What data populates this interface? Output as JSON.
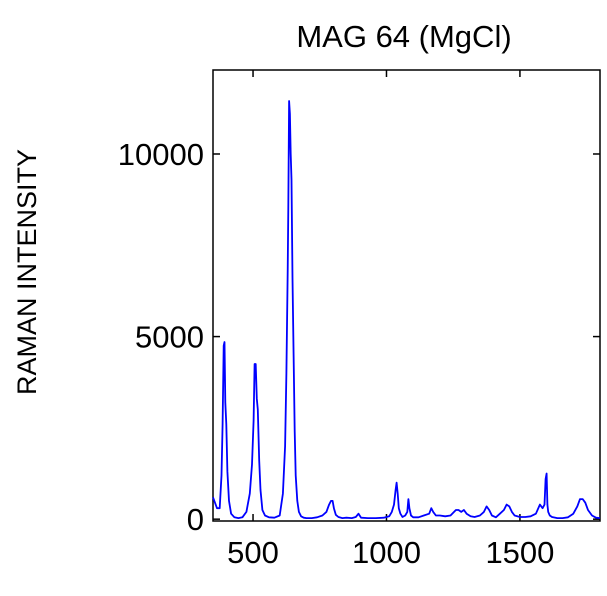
{
  "chart_data": {
    "type": "line",
    "title": "MAG 64 (MgCl)",
    "xlabel": "",
    "ylabel": "RAMAN INTENSITY",
    "xlim": [
      350,
      1800
    ],
    "ylim": [
      -50,
      12300
    ],
    "xticks": [
      500,
      1000,
      1500
    ],
    "yticks": [
      0,
      5000,
      10000
    ],
    "grid": false,
    "line_color": "#0000ff",
    "series": [
      {
        "x": [
          350,
          365,
          375,
          382,
          386,
          390,
          393,
          396,
          400,
          404,
          410,
          418,
          430,
          445,
          460,
          475,
          488,
          496,
          502,
          506,
          510,
          514,
          518,
          523,
          528,
          535,
          545,
          560,
          580,
          600,
          612,
          620,
          625,
          630,
          632,
          635,
          638,
          641,
          644,
          648,
          652,
          656,
          660,
          666,
          672,
          680,
          690,
          700,
          720,
          740,
          760,
          775,
          785,
          792,
          798,
          803,
          810,
          820,
          835,
          850,
          870,
          885,
          895,
          905,
          930,
          960,
          990,
          1010,
          1020,
          1028,
          1034,
          1038,
          1042,
          1046,
          1052,
          1060,
          1070,
          1078,
          1082,
          1086,
          1092,
          1100,
          1120,
          1140,
          1160,
          1168,
          1175,
          1185,
          1200,
          1220,
          1240,
          1260,
          1270,
          1280,
          1290,
          1300,
          1315,
          1330,
          1350,
          1365,
          1375,
          1385,
          1395,
          1410,
          1425,
          1440,
          1450,
          1460,
          1470,
          1480,
          1500,
          1520,
          1540,
          1560,
          1575,
          1585,
          1592,
          1596,
          1600,
          1603,
          1606,
          1612,
          1620,
          1640,
          1660,
          1680,
          1700,
          1715,
          1725,
          1735,
          1745,
          1755,
          1770,
          1785,
          1800
        ],
        "y": [
          600,
          300,
          300,
          1200,
          2600,
          4750,
          4850,
          3200,
          2600,
          1300,
          500,
          150,
          50,
          30,
          50,
          200,
          700,
          1500,
          2700,
          4250,
          4250,
          3300,
          3000,
          1600,
          800,
          250,
          100,
          50,
          40,
          100,
          700,
          2000,
          4000,
          6800,
          8500,
          11450,
          11100,
          10000,
          9300,
          6600,
          4500,
          2400,
          1200,
          500,
          200,
          80,
          40,
          30,
          30,
          50,
          100,
          200,
          400,
          500,
          500,
          300,
          120,
          60,
          30,
          40,
          30,
          60,
          150,
          40,
          30,
          30,
          40,
          80,
          200,
          400,
          800,
          1000,
          700,
          300,
          150,
          60,
          100,
          200,
          550,
          300,
          100,
          50,
          50,
          100,
          150,
          300,
          200,
          100,
          100,
          80,
          100,
          250,
          250,
          200,
          250,
          150,
          80,
          60,
          100,
          200,
          350,
          250,
          100,
          50,
          150,
          250,
          400,
          350,
          200,
          100,
          60,
          60,
          80,
          150,
          400,
          300,
          400,
          1100,
          1250,
          400,
          200,
          100,
          60,
          30,
          30,
          50,
          150,
          350,
          550,
          550,
          450,
          250,
          100,
          40,
          30
        ]
      }
    ]
  }
}
